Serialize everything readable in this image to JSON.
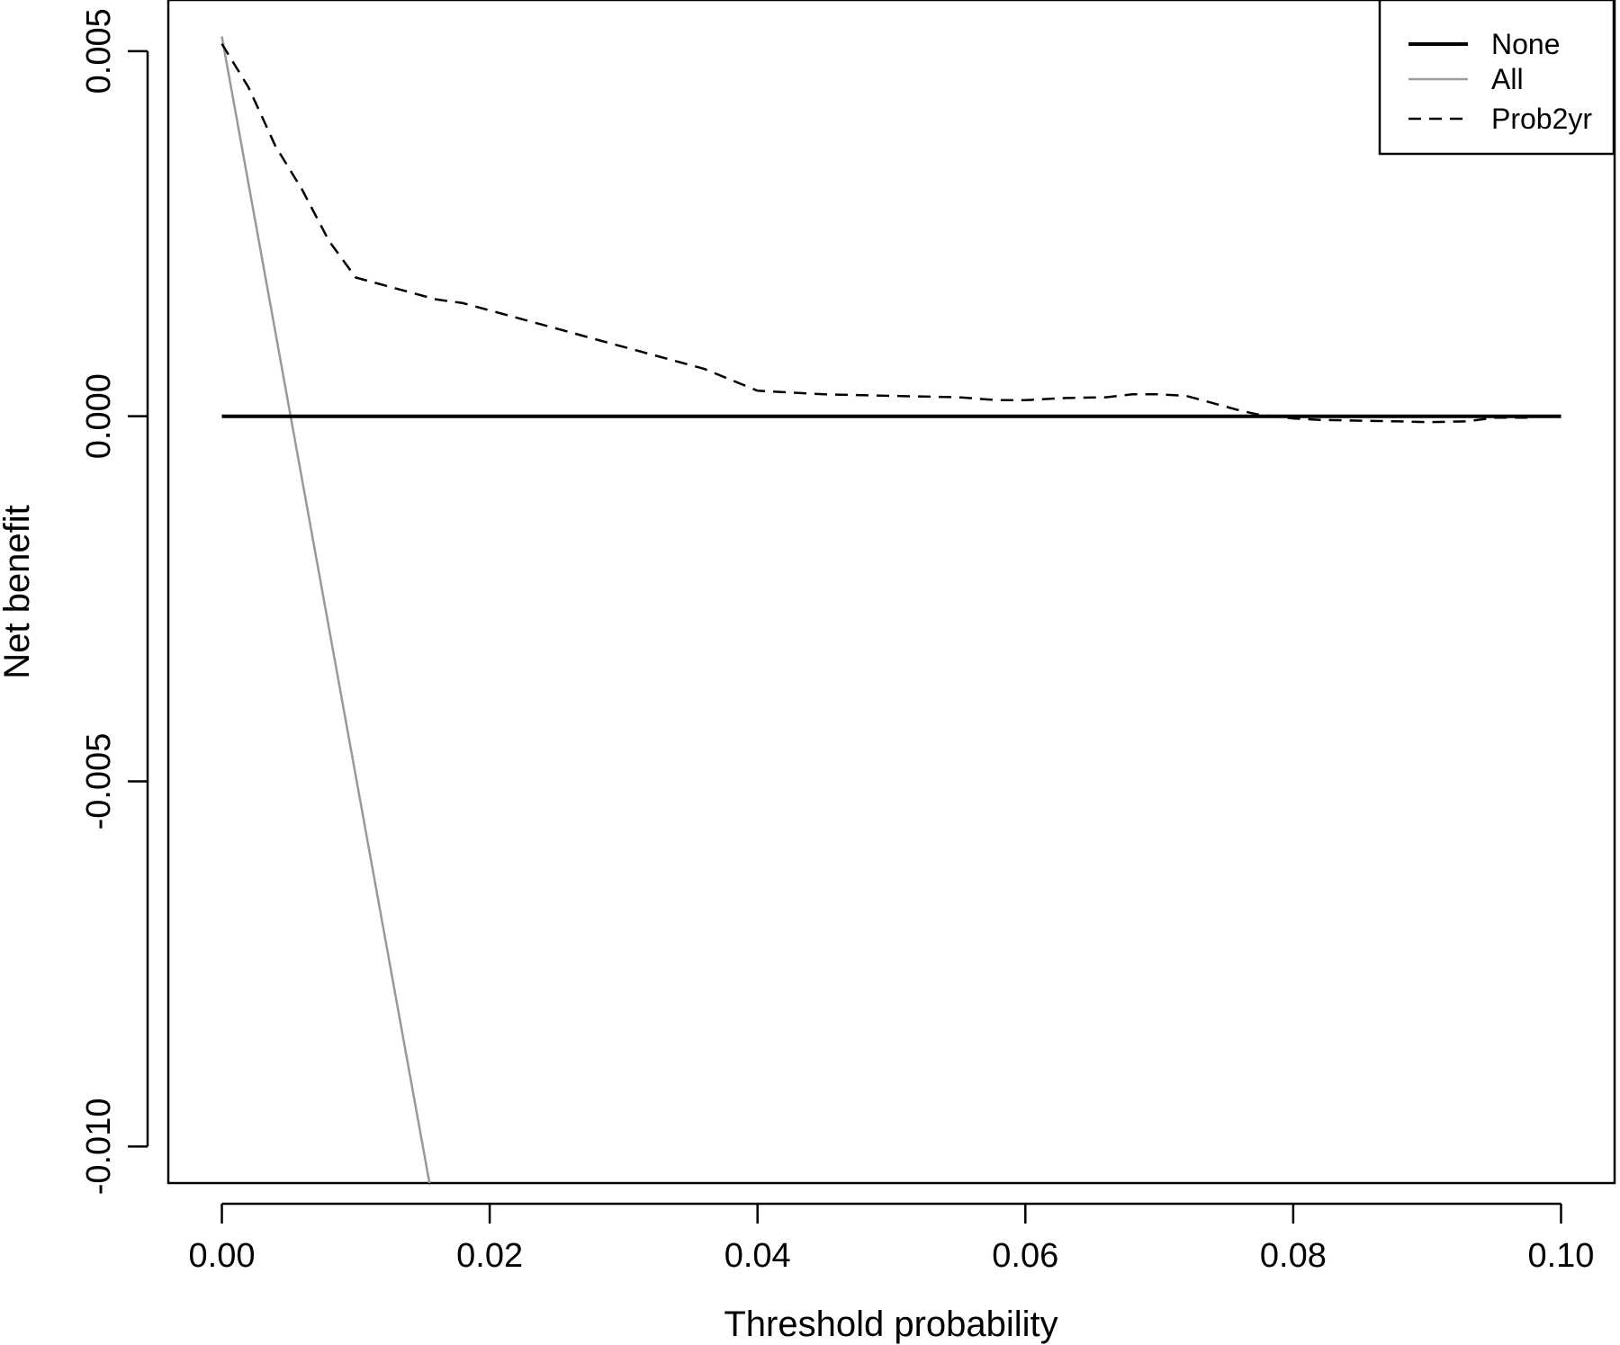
{
  "chart_data": {
    "type": "line",
    "title": "",
    "xlabel": "Threshold probability",
    "ylabel": "Net benefit",
    "xlim": [
      -0.004,
      0.104
    ],
    "ylim": [
      -0.0105,
      0.0057
    ],
    "xticks": [
      0.0,
      0.02,
      0.04,
      0.06,
      0.08,
      0.1
    ],
    "xtick_labels": [
      "0.00",
      "0.02",
      "0.04",
      "0.06",
      "0.08",
      "0.10"
    ],
    "yticks": [
      -0.01,
      -0.005,
      0.0,
      0.005
    ],
    "ytick_labels": [
      "-0.010",
      "-0.005",
      "0.000",
      "0.005"
    ],
    "grid": false,
    "legend_position": "top-right",
    "series": [
      {
        "name": "None",
        "style": "solid",
        "color": "#000000",
        "x": [
          0.0,
          0.1
        ],
        "y": [
          0.0,
          0.0
        ]
      },
      {
        "name": "All",
        "style": "solid",
        "color": "#999999",
        "x": [
          0.0,
          0.0155
        ],
        "y": [
          0.0052,
          -0.0105
        ]
      },
      {
        "name": "Prob2yr",
        "style": "dashed",
        "color": "#000000",
        "x": [
          0.0,
          0.002,
          0.004,
          0.006,
          0.008,
          0.01,
          0.012,
          0.014,
          0.016,
          0.018,
          0.02,
          0.022,
          0.024,
          0.026,
          0.028,
          0.03,
          0.032,
          0.034,
          0.036,
          0.038,
          0.04,
          0.045,
          0.05,
          0.055,
          0.058,
          0.06,
          0.063,
          0.066,
          0.068,
          0.07,
          0.072,
          0.074,
          0.076,
          0.0775,
          0.08,
          0.082,
          0.085,
          0.088,
          0.09,
          0.093,
          0.095,
          0.0975
        ],
        "y": [
          0.0051,
          0.0045,
          0.0037,
          0.0031,
          0.0024,
          0.0019,
          0.0018,
          0.0017,
          0.0016,
          0.00155,
          0.00145,
          0.00135,
          0.00125,
          0.00115,
          0.00105,
          0.00095,
          0.00085,
          0.00075,
          0.00065,
          0.0005,
          0.00035,
          0.0003,
          0.00028,
          0.00026,
          0.00022,
          0.00022,
          0.00025,
          0.00026,
          0.0003,
          0.0003,
          0.00028,
          0.00018,
          8e-05,
          2e-05,
          -3e-05,
          -5e-05,
          -6e-05,
          -7e-05,
          -8e-05,
          -7e-05,
          -2e-05,
          -2e-05
        ]
      }
    ]
  }
}
